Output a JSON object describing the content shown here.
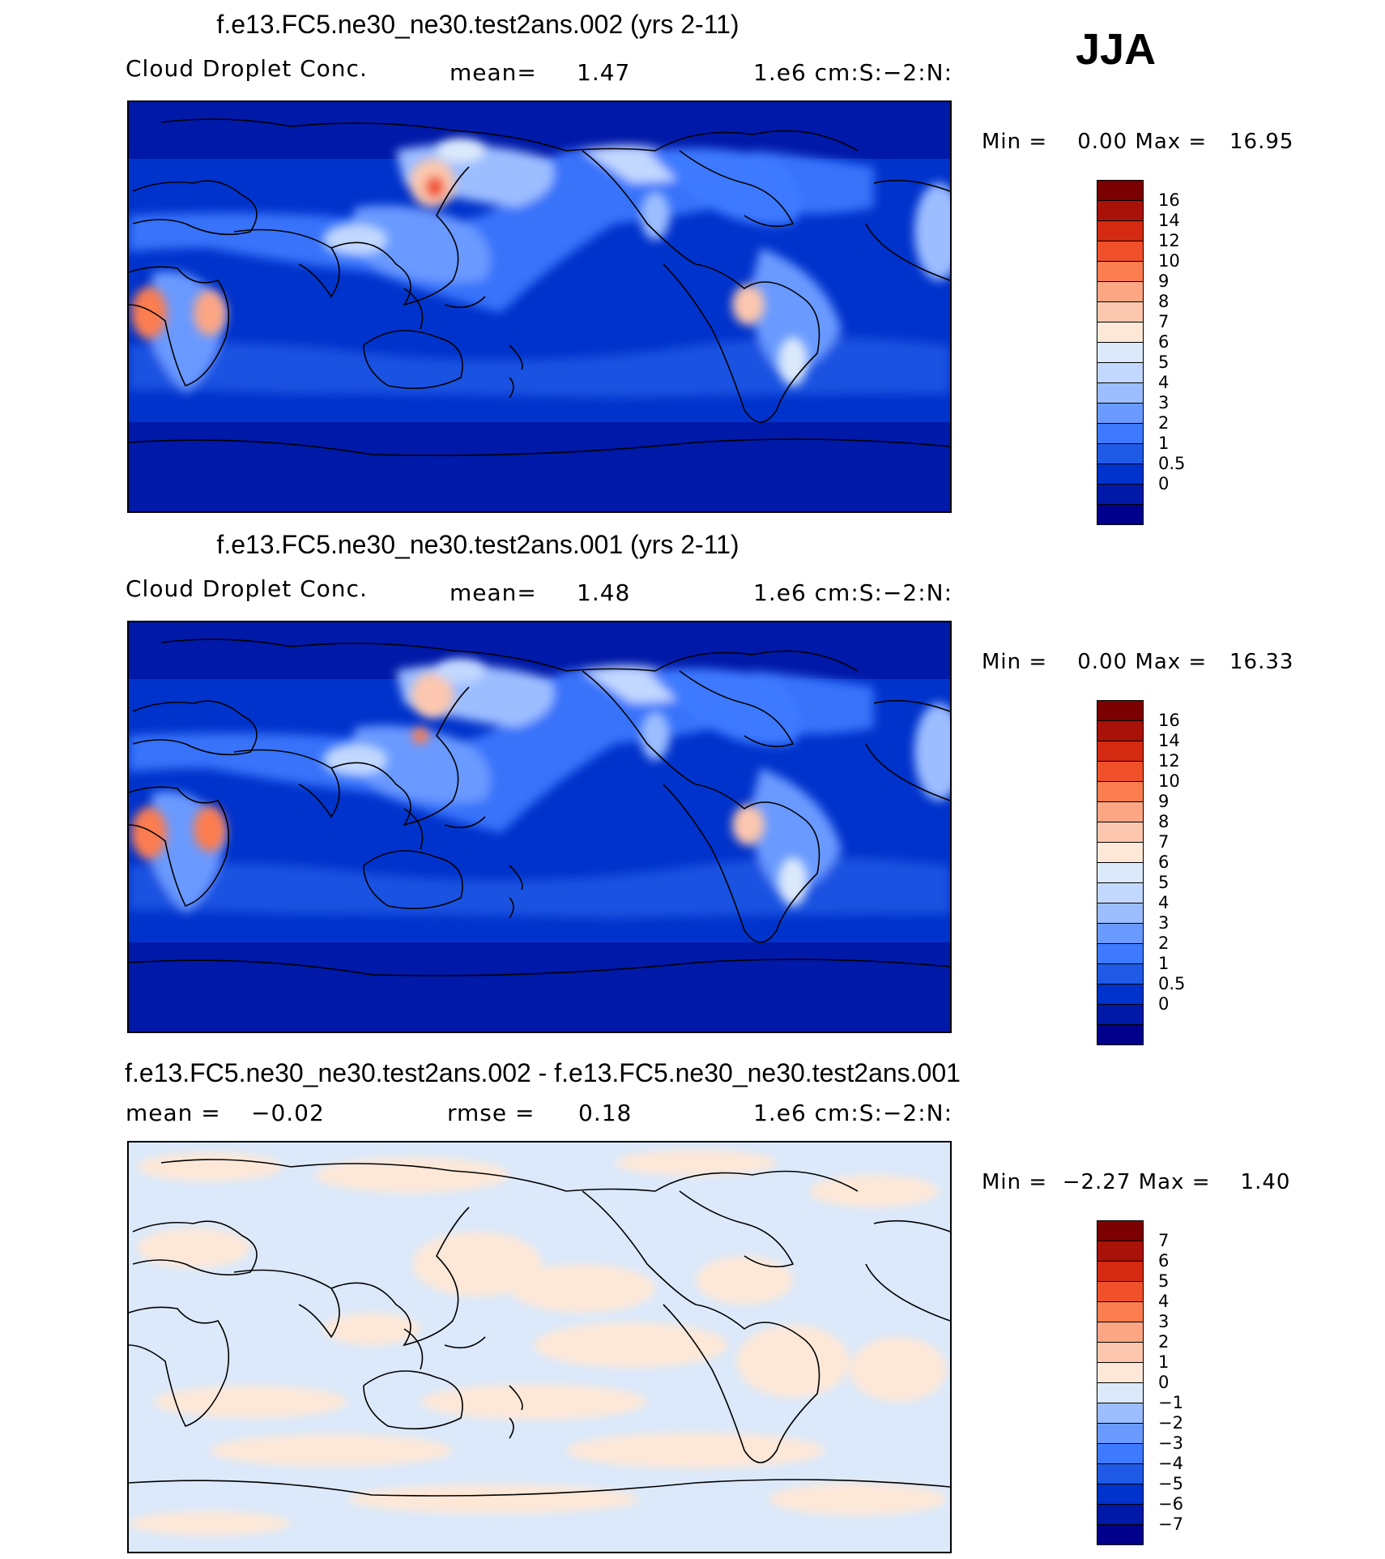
{
  "season_label": "JJA",
  "colors": {
    "abs_scale": [
      "#00008c",
      "#0019a8",
      "#0033cc",
      "#1f5ae6",
      "#3d7aff",
      "#6a9aff",
      "#9cbdff",
      "#c2d8ff",
      "#dbe9fb",
      "#fde8d8",
      "#fcc7ae",
      "#fca684",
      "#fc7d4f",
      "#f0502a",
      "#d42a12",
      "#a81208",
      "#7c0000"
    ],
    "diff_scale": [
      "#00008c",
      "#0019a8",
      "#0033cc",
      "#1f5ae6",
      "#3d7aff",
      "#6a9aff",
      "#9cbdff",
      "#dbe9fb",
      "#fde8d8",
      "#fcc7ae",
      "#fca684",
      "#fc7d4f",
      "#f0502a",
      "#d42a12",
      "#a81208",
      "#7c0000"
    ]
  },
  "panels": [
    {
      "title": "f.e13.FC5.ne30_ne30.test2ans.002 (yrs 2-11)",
      "variable": "Cloud Droplet Conc.",
      "stat_label": "mean=",
      "stat_value": "1.47",
      "units": "1.e6 cm:S:−2:N:",
      "min_label": "Min =",
      "min_value": "0.00",
      "max_label": "Max =",
      "max_value": "16.95",
      "colorbar_labels": [
        "16",
        "14",
        "12",
        "10",
        "9",
        "8",
        "7",
        "6",
        "5",
        "4",
        "3",
        "2",
        "1",
        "0.5",
        "0"
      ]
    },
    {
      "title": "f.e13.FC5.ne30_ne30.test2ans.001 (yrs 2-11)",
      "variable": "Cloud Droplet Conc.",
      "stat_label": "mean=",
      "stat_value": "1.48",
      "units": "1.e6 cm:S:−2:N:",
      "min_label": "Min =",
      "min_value": "0.00",
      "max_label": "Max =",
      "max_value": "16.33",
      "colorbar_labels": [
        "16",
        "14",
        "12",
        "10",
        "9",
        "8",
        "7",
        "6",
        "5",
        "4",
        "3",
        "2",
        "1",
        "0.5",
        "0"
      ]
    },
    {
      "title": "f.e13.FC5.ne30_ne30.test2ans.002 - f.e13.FC5.ne30_ne30.test2ans.001",
      "mean_label": "mean =",
      "mean_value": "−0.02",
      "rmse_label": "rmse =",
      "rmse_value": "0.18",
      "units": "1.e6 cm:S:−2:N:",
      "min_label": "Min =",
      "min_value": "−2.27",
      "max_label": "Max =",
      "max_value": "1.40",
      "colorbar_labels": [
        "7",
        "6",
        "5",
        "4",
        "3",
        "2",
        "1",
        "0",
        "−1",
        "−2",
        "−3",
        "−4",
        "−5",
        "−6",
        "−7"
      ]
    }
  ]
}
